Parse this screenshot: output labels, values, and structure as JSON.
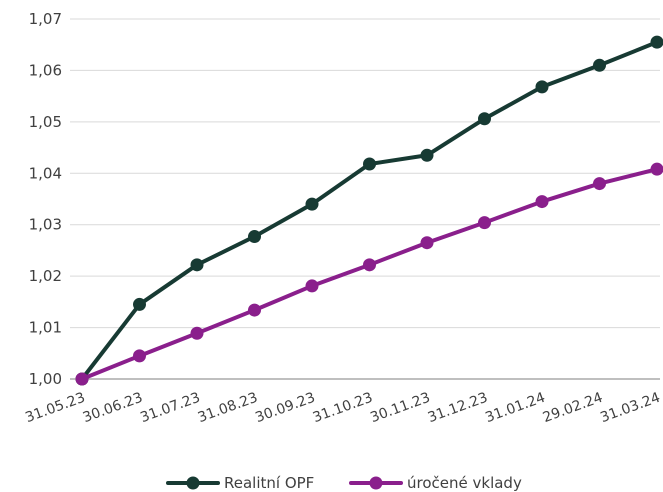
{
  "chart_data": {
    "type": "line",
    "categories": [
      "31.05.23",
      "30.06.23",
      "31.07.23",
      "31.08.23",
      "30.09.23",
      "31.10.23",
      "30.11.23",
      "31.12.23",
      "31.01.24",
      "29.02.24",
      "31.03.24"
    ],
    "series": [
      {
        "name": "Realitní OPF",
        "color": "#173a33",
        "values": [
          1.0,
          1.0145,
          1.0222,
          1.0277,
          1.034,
          1.0418,
          1.0435,
          1.0506,
          1.0568,
          1.061,
          1.0655
        ]
      },
      {
        "name": "úročené vklady",
        "color": "#8a1f8c",
        "values": [
          1.0,
          1.0045,
          1.0089,
          1.0134,
          1.0181,
          1.0222,
          1.0265,
          1.0304,
          1.0345,
          1.038,
          1.0408
        ]
      }
    ],
    "yticks": [
      "1,00",
      "1,01",
      "1,02",
      "1,03",
      "1,04",
      "1,05",
      "1,06",
      "1,07"
    ],
    "ylim": [
      1.0,
      1.07
    ],
    "grid": true,
    "legend": "bottom"
  }
}
